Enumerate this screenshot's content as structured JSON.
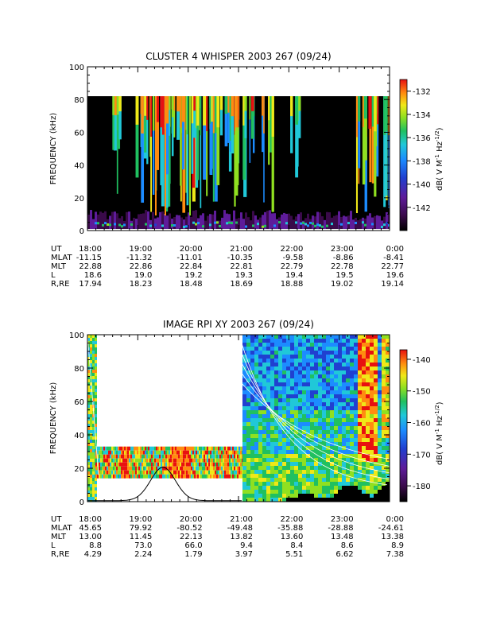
{
  "chart_data": [
    {
      "type": "heatmap",
      "title": "CLUSTER 4 WHISPER 2003 267 (09/24)",
      "ylabel": "FREQUENCY (kHz)",
      "ylim": [
        0,
        100
      ],
      "yticks": [
        "0",
        "20",
        "40",
        "60",
        "80",
        "100"
      ],
      "data_max_frequency_khz": 80,
      "colorbar": {
        "label": "dB( V M",
        "label_sup1": "-1",
        "label_mid": " Hz",
        "label_sup2": "-1/2",
        "label_end": ")",
        "range": [
          -144,
          -131
        ],
        "ticks": [
          "-132",
          "-134",
          "-136",
          "-138",
          "-140",
          "-142"
        ]
      },
      "ephemeris": {
        "row_labels": [
          "UT",
          "MLAT",
          "MLT",
          "L",
          "R,RE"
        ],
        "columns": [
          {
            "ut": "18:00",
            "mlat": "-11.15",
            "mlt": "22.88",
            "l": "18.6",
            "r": "17.94"
          },
          {
            "ut": "19:00",
            "mlat": "-11.32",
            "mlt": "22.86",
            "l": "19.0",
            "r": "18.23"
          },
          {
            "ut": "20:00",
            "mlat": "-11.01",
            "mlt": "22.84",
            "l": "19.2",
            "r": "18.48"
          },
          {
            "ut": "21:00",
            "mlat": "-10.35",
            "mlt": "22.81",
            "l": "19.3",
            "r": "18.69"
          },
          {
            "ut": "22:00",
            "mlat": "-9.58",
            "mlt": "22.79",
            "l": "19.4",
            "r": "18.88"
          },
          {
            "ut": "23:00",
            "mlat": "-8.86",
            "mlt": "22.78",
            "l": "19.5",
            "r": "19.02"
          },
          {
            "ut": "0:00",
            "mlat": "-8.41",
            "mlt": "22.77",
            "l": "19.6",
            "r": "19.14"
          }
        ]
      }
    },
    {
      "type": "heatmap",
      "title": "IMAGE RPI XY 2003 267 (09/24)",
      "ylabel": "FREQUENCY (kHz)",
      "ylim": [
        0,
        100
      ],
      "yticks": [
        "0",
        "20",
        "40",
        "60",
        "80",
        "100"
      ],
      "colorbar": {
        "label": "dB( V M",
        "label_sup1": "-1",
        "label_mid": " Hz",
        "label_sup2": "-1/2",
        "label_end": ")",
        "range": [
          -185,
          -137
        ],
        "ticks": [
          "-140",
          "-150",
          "-160",
          "-170",
          "-180"
        ]
      },
      "ephemeris": {
        "row_labels": [
          "UT",
          "MLAT",
          "MLT",
          "L",
          "R,RE"
        ],
        "columns": [
          {
            "ut": "18:00",
            "mlat": "45.65",
            "mlt": "13.00",
            "l": "8.8",
            "r": "4.29"
          },
          {
            "ut": "19:00",
            "mlat": "79.92",
            "mlt": "11.45",
            "l": "73.0",
            "r": "2.24"
          },
          {
            "ut": "20:00",
            "mlat": "-80.52",
            "mlt": "22.13",
            "l": "66.0",
            "r": "1.79"
          },
          {
            "ut": "21:00",
            "mlat": "-49.48",
            "mlt": "13.82",
            "l": "9.4",
            "r": "3.97"
          },
          {
            "ut": "22:00",
            "mlat": "-35.88",
            "mlt": "13.60",
            "l": "8.4",
            "r": "5.51"
          },
          {
            "ut": "23:00",
            "mlat": "-28.88",
            "mlt": "13.48",
            "l": "8.6",
            "r": "6.62"
          },
          {
            "ut": "0:00",
            "mlat": "-24.61",
            "mlt": "13.38",
            "l": "8.9",
            "r": "7.38"
          }
        ]
      }
    }
  ]
}
